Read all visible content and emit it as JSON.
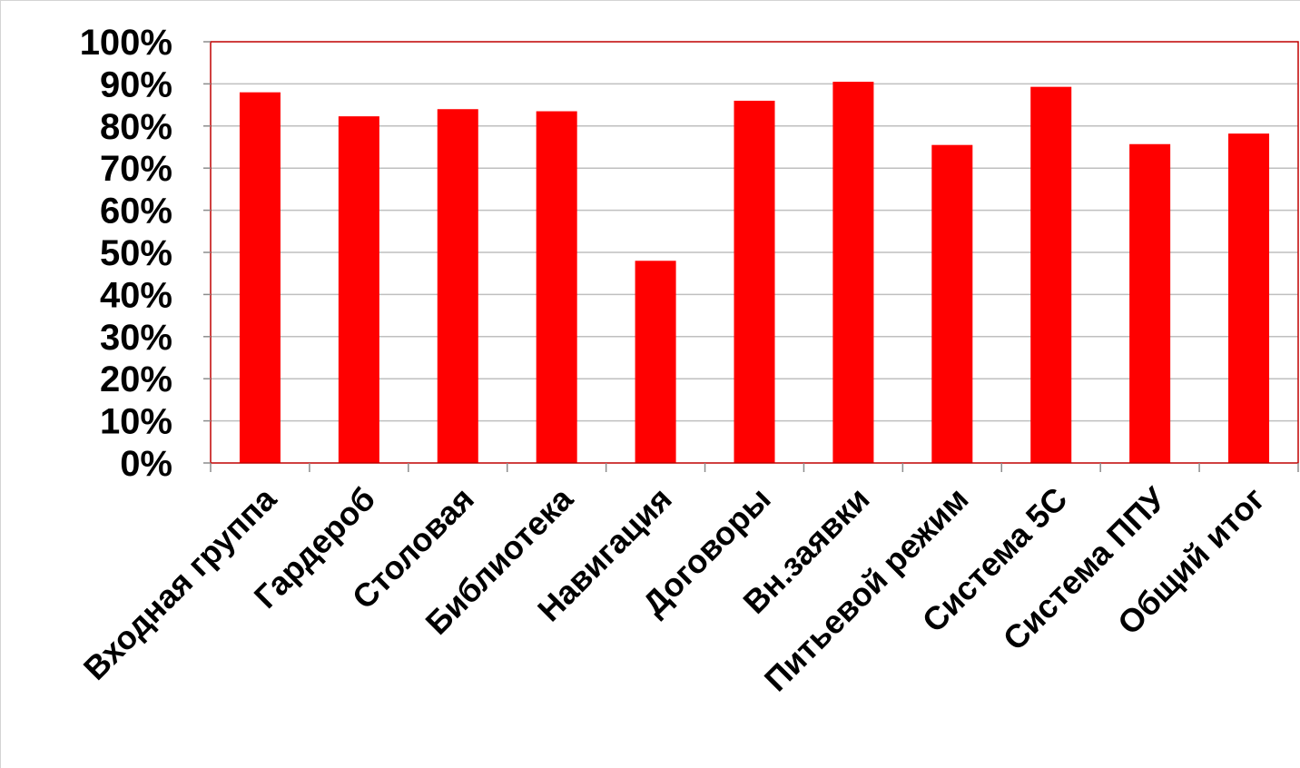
{
  "chart_data": {
    "type": "bar",
    "categories": [
      "Входная группа",
      "Гардероб",
      "Столовая",
      "Библиотека",
      "Навигация",
      "Договоры",
      "Вн.заявки",
      "Питьевой режим",
      "Система 5С",
      "Система ППУ",
      "Общий итог"
    ],
    "values": [
      0.88,
      0.823,
      0.84,
      0.835,
      0.48,
      0.86,
      0.905,
      0.755,
      0.893,
      0.757,
      0.782
    ],
    "ylim": [
      0,
      1
    ],
    "yticks": [
      "0%",
      "10%",
      "20%",
      "30%",
      "40%",
      "50%",
      "60%",
      "70%",
      "80%",
      "90%",
      "100%"
    ],
    "grid": true,
    "legend": "none",
    "colors": {
      "bar": "#ff0000",
      "plot_border": "#c00000",
      "grid": "#bfbfbf",
      "axis": "#8c8c8c"
    },
    "title": "",
    "xlabel": "",
    "ylabel": ""
  }
}
